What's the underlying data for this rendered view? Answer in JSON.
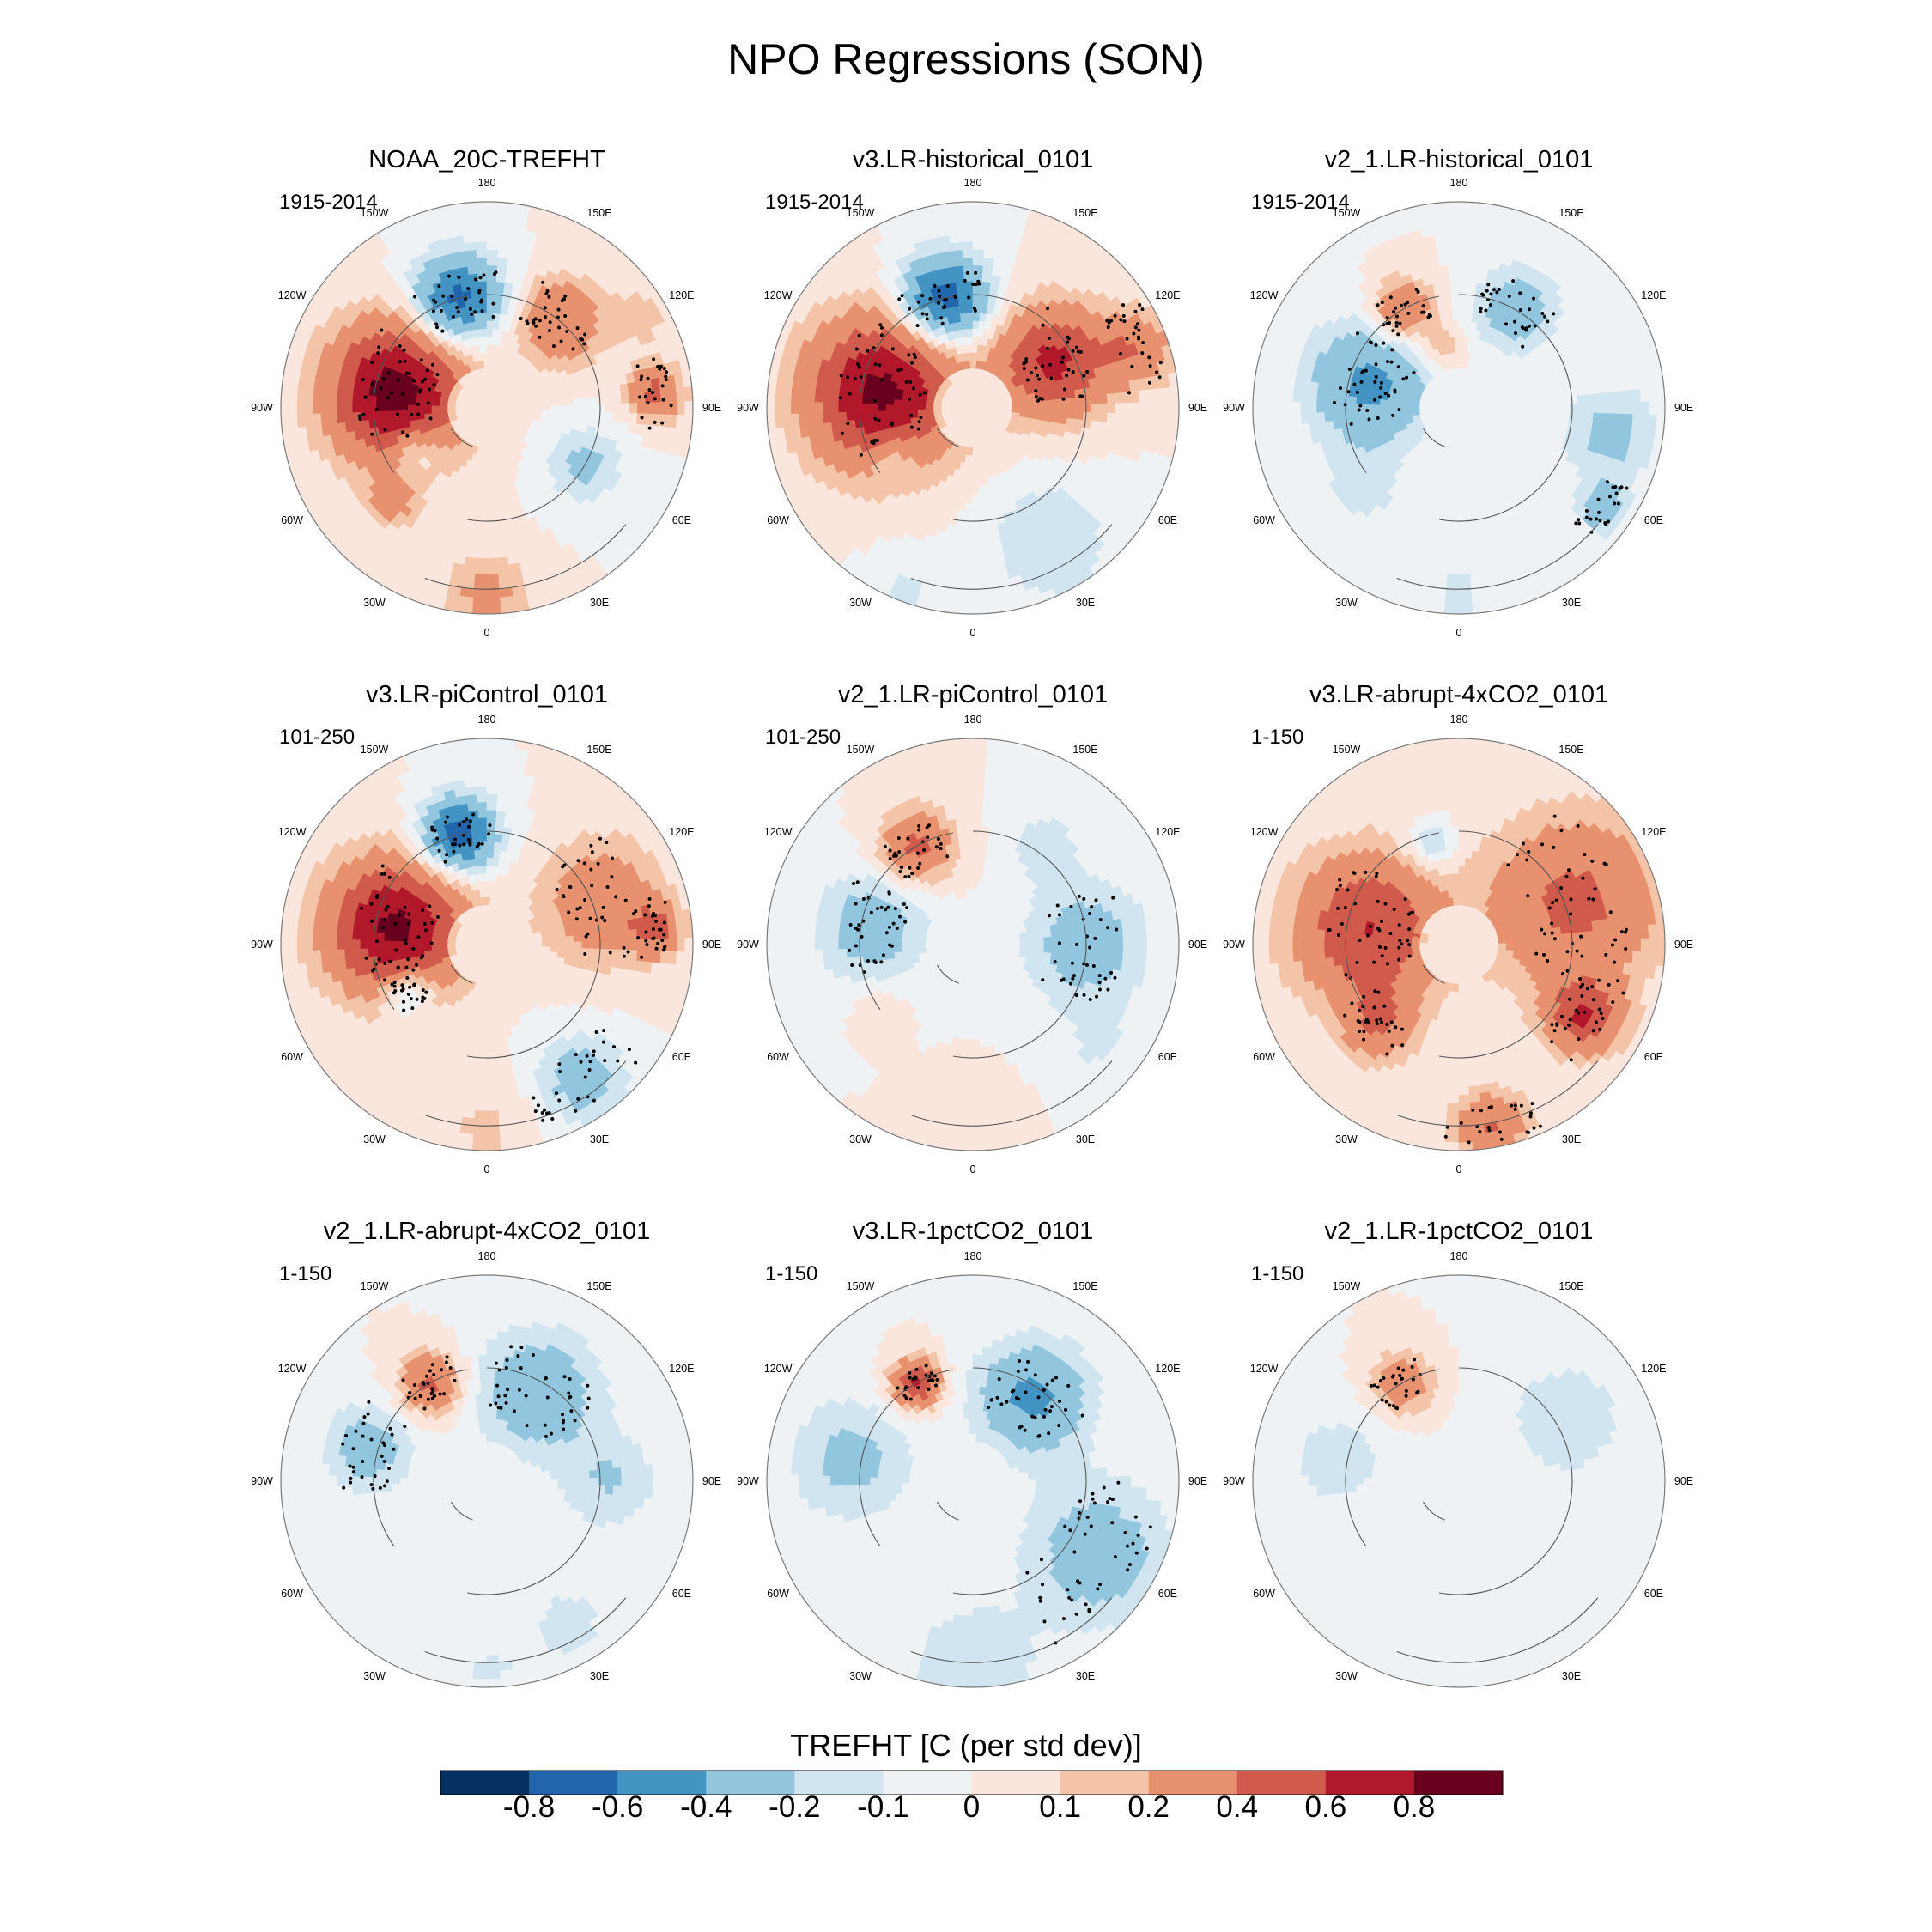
{
  "chart_data": {
    "type": "heatmap",
    "title": "NPO Regressions (SON)",
    "projection": "north-polar-stereographic",
    "variable": "TREFHT",
    "panels": [
      {
        "name": "NOAA_20C-TREFHT",
        "period": "1915-2014",
        "blobs": [
          {
            "lon": -100,
            "r": 0.45,
            "v": 0.9,
            "s": 0.55
          },
          {
            "lon": -165,
            "r": 0.55,
            "v": -0.7,
            "s": 0.35
          },
          {
            "lon": 140,
            "r": 0.55,
            "v": 0.4,
            "s": 0.35
          },
          {
            "lon": 95,
            "r": 0.82,
            "v": 0.45,
            "s": 0.22
          },
          {
            "lon": 60,
            "r": 0.55,
            "v": -0.25,
            "s": 0.3
          },
          {
            "lon": -60,
            "r": 0.4,
            "v": -0.25,
            "s": 0.2
          },
          {
            "lon": -45,
            "r": 0.65,
            "v": 0.25,
            "s": 0.2
          },
          {
            "lon": 0,
            "r": 0.92,
            "v": 0.25,
            "s": 0.35
          },
          {
            "lon": 120,
            "r": 0.88,
            "v": 0.12,
            "s": 0.3
          }
        ]
      },
      {
        "name": "v3.LR-historical_0101",
        "period": "1915-2014",
        "blobs": [
          {
            "lon": -100,
            "r": 0.45,
            "v": 0.85,
            "s": 0.6
          },
          {
            "lon": -165,
            "r": 0.55,
            "v": -0.75,
            "s": 0.35
          },
          {
            "lon": 120,
            "r": 0.45,
            "v": 0.65,
            "s": 0.45
          },
          {
            "lon": 110,
            "r": 0.85,
            "v": 0.35,
            "s": 0.3
          },
          {
            "lon": 30,
            "r": 0.75,
            "v": -0.2,
            "s": 0.5
          },
          {
            "lon": -60,
            "r": 0.45,
            "v": -0.2,
            "s": 0.2
          },
          {
            "lon": -20,
            "r": 0.95,
            "v": -0.12,
            "s": 0.3
          }
        ]
      },
      {
        "name": "v2_1.LR-historical_0101",
        "period": "1915-2014",
        "blobs": [
          {
            "lon": -105,
            "r": 0.45,
            "v": -0.45,
            "s": 0.5
          },
          {
            "lon": -150,
            "r": 0.55,
            "v": 0.45,
            "s": 0.25
          },
          {
            "lon": 150,
            "r": 0.55,
            "v": -0.3,
            "s": 0.35
          },
          {
            "lon": 80,
            "r": 0.75,
            "v": -0.25,
            "s": 0.4
          },
          {
            "lon": 55,
            "r": 0.85,
            "v": -0.3,
            "s": 0.2
          },
          {
            "lon": -50,
            "r": 0.6,
            "v": -0.15,
            "s": 0.3
          },
          {
            "lon": 0,
            "r": 0.9,
            "v": -0.12,
            "s": 0.35
          },
          {
            "lon": -165,
            "r": 0.3,
            "v": 0.2,
            "s": 0.2
          }
        ]
      },
      {
        "name": "v3.LR-piControl_0101",
        "period": "101-250",
        "blobs": [
          {
            "lon": -100,
            "r": 0.45,
            "v": 0.85,
            "s": 0.55
          },
          {
            "lon": -165,
            "r": 0.55,
            "v": -0.75,
            "s": 0.3
          },
          {
            "lon": 110,
            "r": 0.6,
            "v": 0.35,
            "s": 0.5
          },
          {
            "lon": 95,
            "r": 0.82,
            "v": 0.4,
            "s": 0.2
          },
          {
            "lon": -60,
            "r": 0.45,
            "v": -0.35,
            "s": 0.22
          },
          {
            "lon": 35,
            "r": 0.8,
            "v": -0.3,
            "s": 0.35
          },
          {
            "lon": 0,
            "r": 0.9,
            "v": 0.12,
            "s": 0.4
          }
        ]
      },
      {
        "name": "v2_1.LR-piControl_0101",
        "period": "101-250",
        "blobs": [
          {
            "lon": -100,
            "r": 0.5,
            "v": -0.3,
            "s": 0.45
          },
          {
            "lon": -150,
            "r": 0.55,
            "v": 0.45,
            "s": 0.3
          },
          {
            "lon": 90,
            "r": 0.55,
            "v": -0.3,
            "s": 0.5
          },
          {
            "lon": 50,
            "r": 0.8,
            "v": -0.1,
            "s": 0.35
          },
          {
            "lon": 145,
            "r": 0.6,
            "v": -0.15,
            "s": 0.3
          },
          {
            "lon": -55,
            "r": 0.55,
            "v": 0.1,
            "s": 0.2
          },
          {
            "lon": 0,
            "r": 0.9,
            "v": 0.08,
            "s": 0.35
          }
        ]
      },
      {
        "name": "v3.LR-abrupt-4xCO2_0101",
        "period": "1-150",
        "blobs": [
          {
            "lon": -100,
            "r": 0.45,
            "v": 0.6,
            "s": 0.6
          },
          {
            "lon": 110,
            "r": 0.6,
            "v": 0.45,
            "s": 0.7
          },
          {
            "lon": 60,
            "r": 0.7,
            "v": 0.55,
            "s": 0.3
          },
          {
            "lon": -165,
            "r": 0.5,
            "v": -0.25,
            "s": 0.2
          },
          {
            "lon": -45,
            "r": 0.55,
            "v": 0.35,
            "s": 0.3
          },
          {
            "lon": 10,
            "r": 0.9,
            "v": 0.4,
            "s": 0.3
          }
        ]
      },
      {
        "name": "v2_1.LR-abrupt-4xCO2_0101",
        "period": "1-150",
        "blobs": [
          {
            "lon": -150,
            "r": 0.55,
            "v": 0.45,
            "s": 0.25
          },
          {
            "lon": -105,
            "r": 0.6,
            "v": -0.3,
            "s": 0.35
          },
          {
            "lon": 150,
            "r": 0.5,
            "v": -0.35,
            "s": 0.5
          },
          {
            "lon": 90,
            "r": 0.6,
            "v": -0.2,
            "s": 0.4
          },
          {
            "lon": 30,
            "r": 0.8,
            "v": -0.12,
            "s": 0.5
          },
          {
            "lon": 0,
            "r": 0.92,
            "v": -0.1,
            "s": 0.3
          }
        ]
      },
      {
        "name": "v3.LR-1pctCO2_0101",
        "period": "1-150",
        "blobs": [
          {
            "lon": -150,
            "r": 0.55,
            "v": 0.65,
            "s": 0.2
          },
          {
            "lon": 145,
            "r": 0.5,
            "v": -0.45,
            "s": 0.45
          },
          {
            "lon": 60,
            "r": 0.7,
            "v": -0.3,
            "s": 0.6
          },
          {
            "lon": -100,
            "r": 0.6,
            "v": -0.25,
            "s": 0.5
          },
          {
            "lon": 0,
            "r": 0.9,
            "v": -0.2,
            "s": 0.5
          }
        ]
      },
      {
        "name": "v2_1.LR-1pctCO2_0101",
        "period": "1-150",
        "blobs": [
          {
            "lon": -150,
            "r": 0.55,
            "v": 0.35,
            "s": 0.25
          },
          {
            "lon": -100,
            "r": 0.6,
            "v": -0.15,
            "s": 0.45
          },
          {
            "lon": 120,
            "r": 0.6,
            "v": -0.15,
            "s": 0.6
          },
          {
            "lon": 30,
            "r": 0.8,
            "v": -0.08,
            "s": 0.5
          },
          {
            "lon": 0,
            "r": 0.92,
            "v": -0.08,
            "s": 0.3
          }
        ]
      }
    ],
    "lon_labels": [
      "180",
      "150E",
      "120E",
      "90E",
      "60E",
      "30E",
      "0",
      "30W",
      "60W",
      "90W",
      "120W",
      "150W"
    ],
    "colorbar": {
      "title": "TREFHT [C (per std dev)]",
      "levels": [
        -0.8,
        -0.6,
        -0.4,
        -0.2,
        -0.1,
        0,
        0.1,
        0.2,
        0.4,
        0.6,
        0.8
      ],
      "tick_labels": [
        "-0.8",
        "-0.6",
        "-0.4",
        "-0.2",
        "-0.1",
        "0",
        "0.1",
        "0.2",
        "0.4",
        "0.6",
        "0.8"
      ],
      "colors": [
        "#053061",
        "#2166ac",
        "#4393c3",
        "#92c5de",
        "#d1e5f0",
        "#eef2f5",
        "#fbe6dd",
        "#f4c4a9",
        "#e8916f",
        "#d05a4b",
        "#b2182b",
        "#67001f"
      ]
    }
  }
}
